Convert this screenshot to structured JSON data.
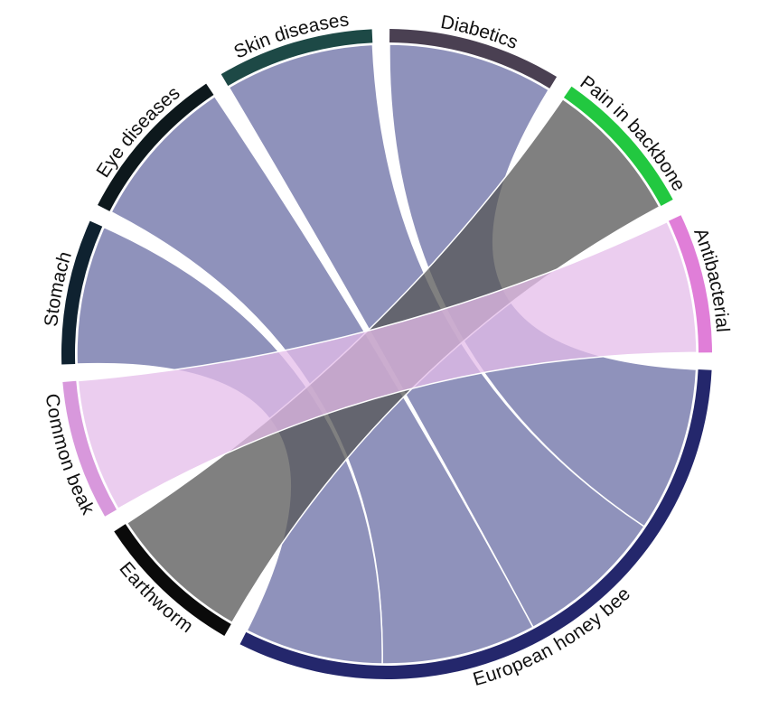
{
  "chart_data": {
    "type": "chord",
    "nodes": [
      {
        "name": "Diabetics",
        "color": "#4a4052"
      },
      {
        "name": "Pain in backbone",
        "color": "#22c840"
      },
      {
        "name": "Antibacterial",
        "color": "#e07ed8"
      },
      {
        "name": "European honey bee",
        "color": "#24276c"
      },
      {
        "name": "Earthworm",
        "color": "#0a0a0a"
      },
      {
        "name": "Common beak",
        "color": "#d898dc"
      },
      {
        "name": "Stomach",
        "color": "#0f2230"
      },
      {
        "name": "Eye diseases",
        "color": "#0d181c"
      },
      {
        "name": "Skin diseases",
        "color": "#1d4946"
      }
    ],
    "links": [
      {
        "source": 3,
        "target": 0,
        "value": 31,
        "color": "#8083b2"
      },
      {
        "source": 3,
        "target": 8,
        "value": 28,
        "color": "#8083b2"
      },
      {
        "source": 3,
        "target": 7,
        "value": 29,
        "color": "#8083b2"
      },
      {
        "source": 3,
        "target": 6,
        "value": 26,
        "color": "#8083b2"
      },
      {
        "source": 4,
        "target": 1,
        "value": 27,
        "color": "#555555"
      },
      {
        "source": 5,
        "target": 2,
        "value": 25,
        "color": "#e4bcea"
      }
    ]
  }
}
